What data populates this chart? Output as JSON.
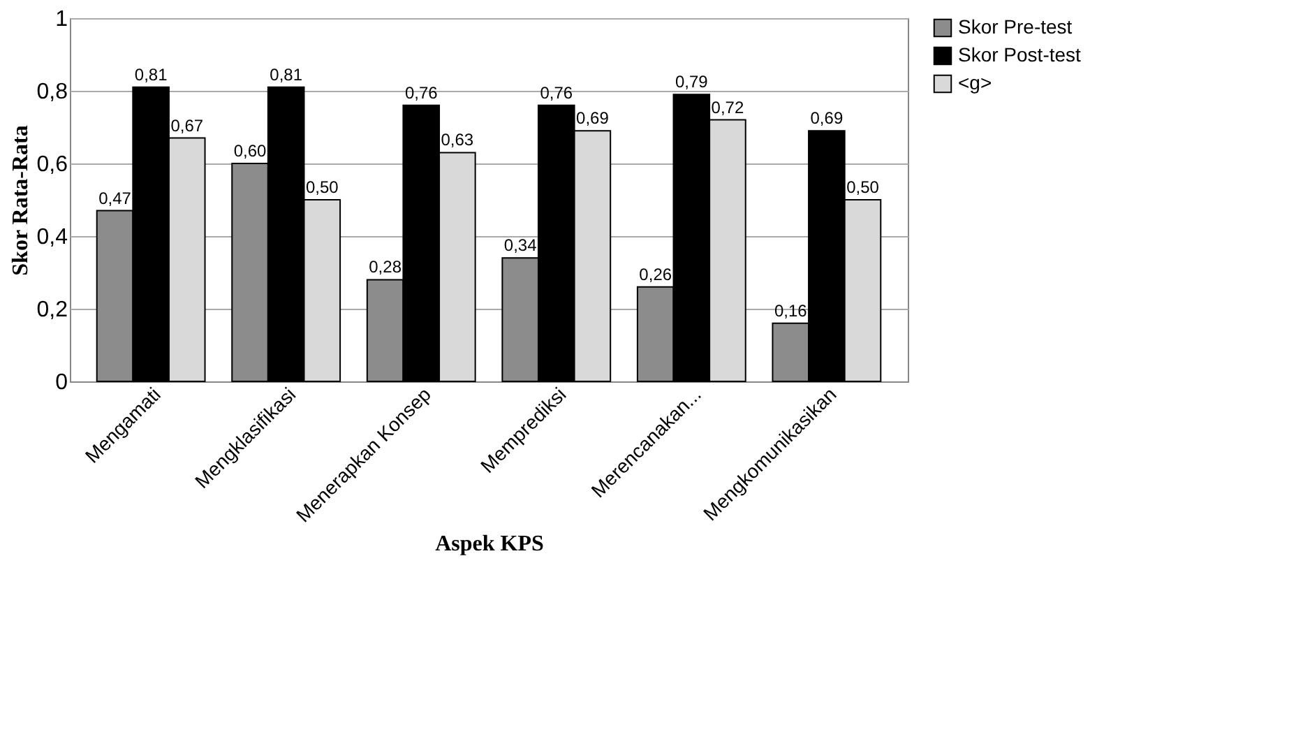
{
  "chart_data": {
    "type": "bar",
    "xlabel": "Aspek KPS",
    "ylabel": "Skor Rata-Rata",
    "categories": [
      "Mengamati",
      "Mengklasifikasi",
      "Menerapkan Konsep",
      "Memprediksi",
      "Merencanakan...",
      "Mengkomunikasikan"
    ],
    "series": [
      {
        "name": "Skor Pre-test",
        "color": "#8c8c8c",
        "values": [
          0.47,
          0.6,
          0.28,
          0.34,
          0.26,
          0.16
        ],
        "value_labels": [
          "0,47",
          "0,60",
          "0,28",
          "0,34",
          "0,26",
          "0,16"
        ]
      },
      {
        "name": "Skor Post-test",
        "color": "#000000",
        "values": [
          0.81,
          0.81,
          0.76,
          0.76,
          0.79,
          0.69
        ],
        "value_labels": [
          "0,81",
          "0,81",
          "0,76",
          "0,76",
          "0,79",
          "0,69"
        ]
      },
      {
        "name": "<g>",
        "color": "#d9d9d9",
        "values": [
          0.67,
          0.5,
          0.63,
          0.69,
          0.72,
          0.5
        ],
        "value_labels": [
          "0,67",
          "0,50",
          "0,63",
          "0,69",
          "0,72",
          "0,50"
        ]
      }
    ],
    "ylim": [
      0,
      1
    ],
    "yticks": [
      0,
      {
        "value": 0.2,
        "label": "0,2"
      },
      {
        "value": 0.4,
        "label": "0,4"
      },
      {
        "value": 0.6,
        "label": "0,6"
      },
      {
        "value": 0.8,
        "label": "0,8"
      },
      1
    ],
    "grid": "y",
    "legend": "right"
  }
}
